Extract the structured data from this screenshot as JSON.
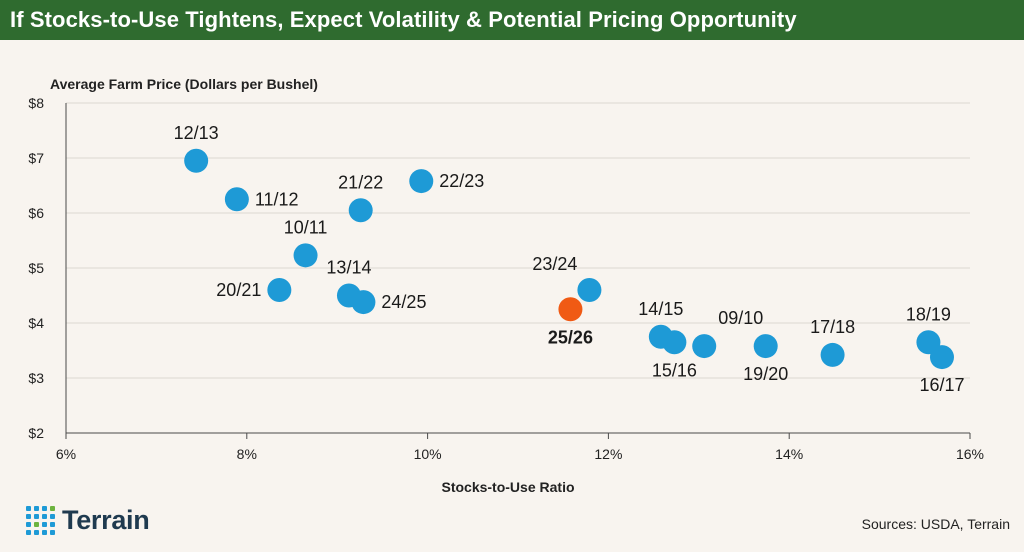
{
  "header": {
    "title": "If Stocks-to-Use Tightens, Expect Volatility & Potential Pricing Opportunity"
  },
  "colors": {
    "title_bg": "#2f6b2f",
    "title_text": "#ffffff",
    "page_bg": "#f8f4ef",
    "point": "#1e9ad6",
    "highlight": "#f05a14",
    "grid": "#dcd7d0",
    "axis": "#4a4a4a",
    "logo_text": "#1f3a4f",
    "logo_blue": "#1e9ad6",
    "logo_green": "#6db33f"
  },
  "chart_data": {
    "type": "scatter",
    "title": "If Stocks-to-Use Tightens, Expect Volatility & Potential Pricing Opportunity",
    "xlabel": "Stocks-to-Use Ratio",
    "ylabel": "Average Farm Price (Dollars per Bushel)",
    "xlim": [
      6,
      16
    ],
    "ylim": [
      2,
      8
    ],
    "x_ticks": [
      6,
      8,
      10,
      12,
      14,
      16
    ],
    "x_tick_labels": [
      "6%",
      "8%",
      "10%",
      "12%",
      "14%",
      "16%"
    ],
    "y_ticks": [
      2,
      3,
      4,
      5,
      6,
      7,
      8
    ],
    "y_tick_labels": [
      "$2",
      "$3",
      "$4",
      "$5",
      "$6",
      "$7",
      "$8"
    ],
    "grid": true,
    "points": [
      {
        "label": "12/13",
        "x": 7.44,
        "y": 6.95,
        "label_pos": "above"
      },
      {
        "label": "11/12",
        "x": 7.89,
        "y": 6.25,
        "label_pos": "right"
      },
      {
        "label": "21/22",
        "x": 9.26,
        "y": 6.05,
        "label_pos": "above"
      },
      {
        "label": "22/23",
        "x": 9.93,
        "y": 6.58,
        "label_pos": "right"
      },
      {
        "label": "10/11",
        "x": 8.65,
        "y": 5.23,
        "label_pos": "above"
      },
      {
        "label": "20/21",
        "x": 8.36,
        "y": 4.6,
        "label_pos": "left"
      },
      {
        "label": "13/14",
        "x": 9.13,
        "y": 4.5,
        "label_pos": "above"
      },
      {
        "label": "24/25",
        "x": 9.29,
        "y": 4.38,
        "label_pos": "right"
      },
      {
        "label": "23/24",
        "x": 11.79,
        "y": 4.6,
        "label_pos": "above-left"
      },
      {
        "label": "25/26",
        "x": 11.58,
        "y": 4.25,
        "label_pos": "below",
        "highlight": true
      },
      {
        "label": "14/15",
        "x": 12.58,
        "y": 3.75,
        "label_pos": "above"
      },
      {
        "label": "15/16",
        "x": 12.73,
        "y": 3.65,
        "label_pos": "below"
      },
      {
        "label": "09/10",
        "x": 13.06,
        "y": 3.58,
        "label_pos": "above-right"
      },
      {
        "label": "19/20",
        "x": 13.74,
        "y": 3.58,
        "label_pos": "below"
      },
      {
        "label": "17/18",
        "x": 14.48,
        "y": 3.42,
        "label_pos": "above"
      },
      {
        "label": "18/19",
        "x": 15.54,
        "y": 3.65,
        "label_pos": "above"
      },
      {
        "label": "16/17",
        "x": 15.69,
        "y": 3.38,
        "label_pos": "below"
      }
    ]
  },
  "footer": {
    "brand": "Terrain",
    "sources": "Sources: USDA, Terrain"
  }
}
